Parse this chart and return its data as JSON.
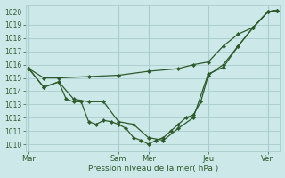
{
  "xlabel": "Pression niveau de la mer( hPa )",
  "bg_color": "#cce8e8",
  "grid_color": "#aacccc",
  "line_color": "#2d5a2d",
  "ylim": [
    1009.5,
    1020.5
  ],
  "xtick_labels": [
    "Mar",
    "Sam",
    "Mer",
    "Jeu",
    "Ven"
  ],
  "xtick_positions": [
    0,
    3,
    4,
    6,
    8
  ],
  "xlim": [
    -0.1,
    8.4
  ],
  "xA": [
    0,
    0.5,
    1.0,
    2.0,
    3.0,
    4.0,
    5.0,
    5.5,
    6.0,
    6.5,
    7.0,
    7.5,
    8.0,
    8.3
  ],
  "yA": [
    1015.7,
    1015.0,
    1015.0,
    1015.1,
    1015.2,
    1015.5,
    1015.7,
    1016.0,
    1016.2,
    1017.4,
    1018.3,
    1018.8,
    1020.0,
    1020.1
  ],
  "xB": [
    0,
    0.5,
    1.0,
    1.25,
    1.5,
    1.75,
    2.0,
    2.25,
    2.5,
    2.75,
    3.0,
    3.25,
    3.5,
    3.75,
    4.0,
    4.25,
    4.5,
    4.75,
    5.0,
    5.25,
    5.5,
    5.75,
    6.0,
    6.5,
    7.0,
    7.5,
    8.0,
    8.3
  ],
  "yB": [
    1015.7,
    1014.3,
    1014.7,
    1013.4,
    1013.2,
    1013.2,
    1011.7,
    1011.5,
    1011.8,
    1011.7,
    1011.5,
    1011.2,
    1010.5,
    1010.3,
    1010.0,
    1010.3,
    1010.5,
    1011.0,
    1011.5,
    1012.0,
    1012.2,
    1013.2,
    1015.2,
    1016.0,
    1017.4,
    1018.8,
    1020.0,
    1020.1
  ],
  "xC": [
    0,
    0.5,
    1.0,
    1.5,
    2.0,
    2.5,
    3.0,
    3.5,
    4.0,
    4.5,
    5.0,
    5.5,
    6.0,
    6.5,
    7.0,
    7.5,
    8.0,
    8.3
  ],
  "yC": [
    1015.7,
    1014.3,
    1014.7,
    1013.4,
    1013.2,
    1013.2,
    1011.7,
    1011.5,
    1010.5,
    1010.3,
    1011.2,
    1012.0,
    1015.3,
    1015.8,
    1017.4,
    1018.8,
    1020.0,
    1020.1
  ],
  "marker_size": 2.2,
  "line_width": 0.9,
  "ytick_fontsize": 5.5,
  "xtick_fontsize": 6.0,
  "xlabel_fontsize": 6.5
}
